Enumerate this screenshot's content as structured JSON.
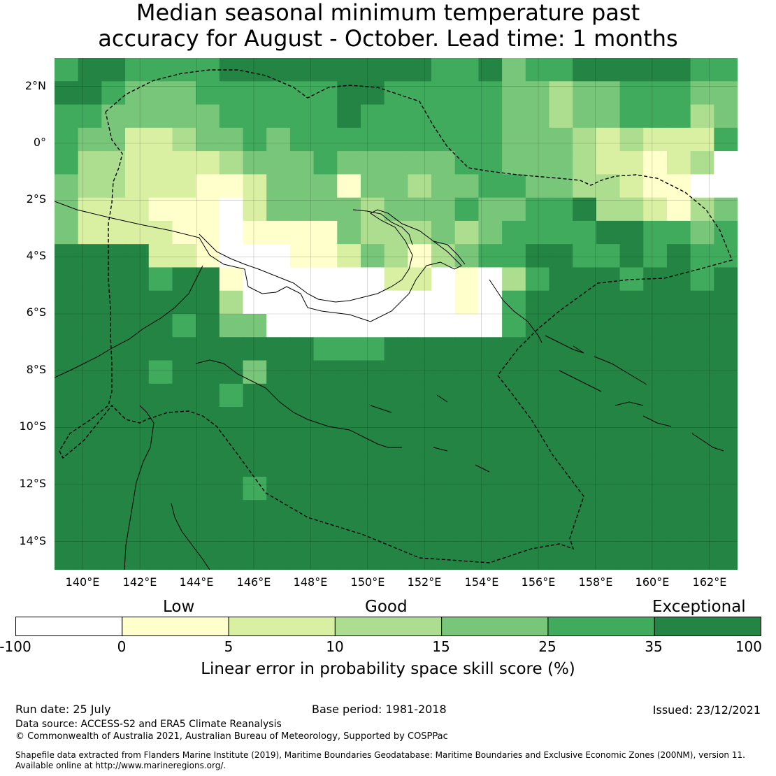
{
  "title": {
    "line1": "Median seasonal minimum temperature past",
    "line2": "accuracy for August - October. Lead time: 1 months"
  },
  "map": {
    "lat_labels": [
      "2°N",
      "0°",
      "2°S",
      "4°S",
      "6°S",
      "8°S",
      "10°S",
      "12°S",
      "14°S"
    ],
    "lon_labels": [
      "140°E",
      "142°E",
      "144°E",
      "146°E",
      "148°E",
      "150°E",
      "152°E",
      "154°E",
      "156°E",
      "158°E",
      "160°E",
      "162°E"
    ],
    "extent": {
      "lon_min": 139,
      "lon_max": 163,
      "lat_min": -15,
      "lat_max": 3
    }
  },
  "colorbar": {
    "categories": [
      "Low",
      "Good",
      "Exceptional"
    ],
    "ticks": [
      "-100",
      "0",
      "5",
      "10",
      "15",
      "25",
      "35",
      "100"
    ],
    "colors": [
      "#ffffff",
      "#ffffcc",
      "#d9f0a3",
      "#addd8e",
      "#78c679",
      "#41ab5d",
      "#238443"
    ],
    "title": "Linear error in probability space skill score (%)"
  },
  "footer": {
    "run_date": "Run date: 25 July",
    "base_period": "Base period: 1981-2018",
    "issued": "Issued: 23/12/2021",
    "data_source": "Data source: ACCESS-S2 and ERA5 Climate Reanalysis",
    "copyright": "© Commonwealth of Australia 2021, Australian Bureau of Meteorology, Supported by COSPPac",
    "shapefile_line1": "Shapefile data extracted from Flanders Marine Institute (2019), Maritime Boundaries Geodatabase: Maritime Boundaries and Exclusive Economic Zones (200NM), version 11.",
    "shapefile_line2": "Available online at http://www.marineregions.org/."
  }
}
